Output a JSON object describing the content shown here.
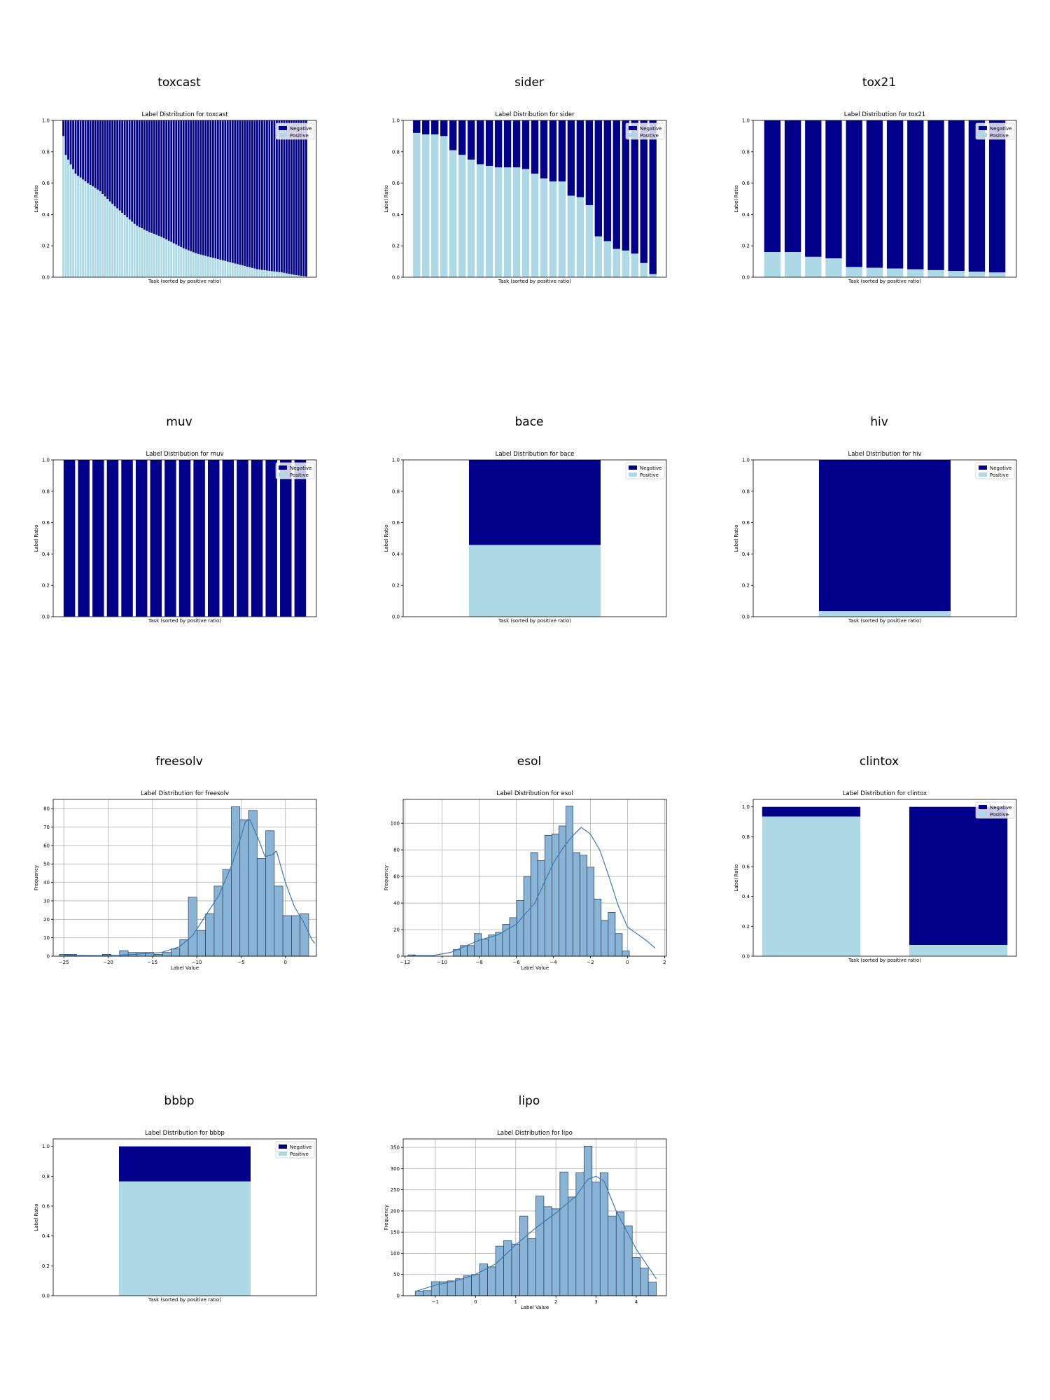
{
  "colors": {
    "negative": "#00008b",
    "positive": "#add8e6",
    "hist_fill": "#8ab4d6",
    "hist_edge": "#1f3a56",
    "kde": "#3a78b0"
  },
  "chart_data": [
    {
      "id": "toxcast",
      "type": "bar",
      "stacked": true,
      "panel_title": "toxcast",
      "title": "Label Distribution for toxcast",
      "xlabel": "Task (sorted by positive ratio)",
      "ylabel": "Label Ratio",
      "ylim": [
        0,
        1.0
      ],
      "yticks": [
        0.0,
        0.2,
        0.4,
        0.6,
        0.8,
        1.0
      ],
      "ytick_labels": [
        "0.0",
        "0.2",
        "0.4",
        "0.6",
        "0.8",
        "1.0"
      ],
      "legend": [
        "Negative",
        "Positive"
      ],
      "legend_position": "top-right",
      "positive_ratio_profile": [
        [
          0,
          0.9
        ],
        [
          0.01,
          0.78
        ],
        [
          0.05,
          0.66
        ],
        [
          0.1,
          0.6
        ],
        [
          0.15,
          0.55
        ],
        [
          0.2,
          0.47
        ],
        [
          0.25,
          0.4
        ],
        [
          0.3,
          0.33
        ],
        [
          0.35,
          0.29
        ],
        [
          0.4,
          0.26
        ],
        [
          0.45,
          0.22
        ],
        [
          0.5,
          0.18
        ],
        [
          0.55,
          0.15
        ],
        [
          0.6,
          0.13
        ],
        [
          0.65,
          0.11
        ],
        [
          0.7,
          0.09
        ],
        [
          0.75,
          0.07
        ],
        [
          0.8,
          0.05
        ],
        [
          0.85,
          0.04
        ],
        [
          0.9,
          0.03
        ],
        [
          0.95,
          0.015
        ],
        [
          1.0,
          0.005
        ]
      ],
      "bar_count": 100
    },
    {
      "id": "sider",
      "type": "bar",
      "stacked": true,
      "panel_title": "sider",
      "title": "Label Distribution for sider",
      "xlabel": "Task (sorted by positive ratio)",
      "ylabel": "Label Ratio",
      "ylim": [
        0,
        1.0
      ],
      "yticks": [
        0.0,
        0.2,
        0.4,
        0.6,
        0.8,
        1.0
      ],
      "ytick_labels": [
        "0.0",
        "0.2",
        "0.4",
        "0.6",
        "0.8",
        "1.0"
      ],
      "legend": [
        "Negative",
        "Positive"
      ],
      "legend_position": "top-right",
      "positive": [
        0.92,
        0.91,
        0.91,
        0.9,
        0.81,
        0.78,
        0.75,
        0.72,
        0.71,
        0.7,
        0.7,
        0.7,
        0.69,
        0.66,
        0.63,
        0.61,
        0.61,
        0.52,
        0.51,
        0.46,
        0.26,
        0.23,
        0.18,
        0.17,
        0.15,
        0.09,
        0.02
      ]
    },
    {
      "id": "tox21",
      "type": "bar",
      "stacked": true,
      "panel_title": "tox21",
      "title": "Label Distribution for tox21",
      "xlabel": "Task (sorted by positive ratio)",
      "ylabel": "Label Ratio",
      "ylim": [
        0,
        1.0
      ],
      "yticks": [
        0.0,
        0.2,
        0.4,
        0.6,
        0.8,
        1.0
      ],
      "ytick_labels": [
        "0.0",
        "0.2",
        "0.4",
        "0.6",
        "0.8",
        "1.0"
      ],
      "legend": [
        "Negative",
        "Positive"
      ],
      "legend_position": "top-right",
      "positive": [
        0.16,
        0.16,
        0.13,
        0.12,
        0.065,
        0.06,
        0.055,
        0.05,
        0.045,
        0.04,
        0.035,
        0.03
      ]
    },
    {
      "id": "muv",
      "type": "bar",
      "stacked": true,
      "panel_title": "muv",
      "title": "Label Distribution for muv",
      "xlabel": "Task (sorted by positive ratio)",
      "ylabel": "Label Ratio",
      "ylim": [
        0,
        1.0
      ],
      "yticks": [
        0.0,
        0.2,
        0.4,
        0.6,
        0.8,
        1.0
      ],
      "ytick_labels": [
        "0.0",
        "0.2",
        "0.4",
        "0.6",
        "0.8",
        "1.0"
      ],
      "legend": [
        "Negative",
        "Positive"
      ],
      "legend_position": "top-right",
      "positive": [
        0.002,
        0.002,
        0.002,
        0.002,
        0.002,
        0.002,
        0.002,
        0.002,
        0.002,
        0.002,
        0.002,
        0.002,
        0.002,
        0.002,
        0.002,
        0.002,
        0.002
      ]
    },
    {
      "id": "bace",
      "type": "bar",
      "stacked": true,
      "panel_title": "bace",
      "title": "Label Distribution for bace",
      "xlabel": "Task (sorted by positive ratio)",
      "ylabel": "Label Ratio",
      "ylim": [
        0,
        1.0
      ],
      "yticks": [
        0.0,
        0.2,
        0.4,
        0.6,
        0.8,
        1.0
      ],
      "ytick_labels": [
        "0.0",
        "0.2",
        "0.4",
        "0.6",
        "0.8",
        "1.0"
      ],
      "legend": [
        "Negative",
        "Positive"
      ],
      "legend_position": "top-right",
      "positive": [
        0.457
      ]
    },
    {
      "id": "hiv",
      "type": "bar",
      "stacked": true,
      "panel_title": "hiv",
      "title": "Label Distribution for hiv",
      "xlabel": "Task (sorted by positive ratio)",
      "ylabel": "Label Ratio",
      "ylim": [
        0,
        1.0
      ],
      "yticks": [
        0.0,
        0.2,
        0.4,
        0.6,
        0.8,
        1.0
      ],
      "ytick_labels": [
        "0.0",
        "0.2",
        "0.4",
        "0.6",
        "0.8",
        "1.0"
      ],
      "legend": [
        "Negative",
        "Positive"
      ],
      "legend_position": "top-right",
      "positive": [
        0.035
      ]
    },
    {
      "id": "freesolv",
      "type": "histogram",
      "kde": [
        [
          -25,
          0.5
        ],
        [
          -20,
          0.3
        ],
        [
          -17,
          1
        ],
        [
          -14,
          2
        ],
        [
          -12,
          5
        ],
        [
          -10.5,
          11
        ],
        [
          -9,
          22
        ],
        [
          -7.5,
          33
        ],
        [
          -6,
          50
        ],
        [
          -5,
          65
        ],
        [
          -4.5,
          73
        ],
        [
          -4,
          74
        ],
        [
          -3,
          63
        ],
        [
          -2.3,
          54
        ],
        [
          -1.5,
          55
        ],
        [
          -1,
          57
        ],
        [
          0,
          40
        ],
        [
          1,
          27
        ],
        [
          2,
          19
        ],
        [
          3,
          9
        ],
        [
          3.3,
          7
        ]
      ],
      "panel_title": "freesolv",
      "title": "Label Distribution for freesolv",
      "xlabel": "Label Value",
      "ylabel": "Frequency",
      "xlim": [
        -26.2,
        3.5
      ],
      "ylim": [
        0,
        85
      ],
      "xticks": [
        -25,
        -20,
        -15,
        -10,
        -5,
        0
      ],
      "xtick_labels": [
        "−25",
        "−20",
        "−15",
        "−10",
        "−5",
        "0"
      ],
      "yticks": [
        0,
        10,
        20,
        30,
        40,
        50,
        60,
        70,
        80
      ],
      "ytick_labels": [
        "0",
        "10",
        "20",
        "30",
        "40",
        "50",
        "60",
        "70",
        "80"
      ],
      "bin_start": -25.5,
      "bin_width": 0.97,
      "counts": [
        1,
        1,
        0,
        0,
        0,
        1,
        0,
        3,
        2,
        2,
        2,
        1,
        2,
        4,
        9,
        32,
        14,
        23,
        38,
        47,
        81,
        74,
        79,
        53,
        68,
        38,
        22,
        22,
        23
      ]
    },
    {
      "id": "esol",
      "type": "histogram",
      "kde": [
        [
          -11.6,
          0.5
        ],
        [
          -10.5,
          0.5
        ],
        [
          -9.5,
          3
        ],
        [
          -9,
          6
        ],
        [
          -8,
          12
        ],
        [
          -7,
          16
        ],
        [
          -6,
          24
        ],
        [
          -5,
          40
        ],
        [
          -4.5,
          55
        ],
        [
          -4,
          70
        ],
        [
          -3.5,
          81
        ],
        [
          -3,
          90
        ],
        [
          -2.5,
          97
        ],
        [
          -2,
          92
        ],
        [
          -1.5,
          80
        ],
        [
          -1,
          60
        ],
        [
          -0.5,
          38
        ],
        [
          0,
          22
        ],
        [
          0.5,
          17
        ],
        [
          1,
          12
        ],
        [
          1.5,
          6
        ]
      ],
      "panel_title": "esol",
      "title": "Label Distribution for esol",
      "xlabel": "Label Value",
      "ylabel": "Frequency",
      "xlim": [
        -12.1,
        2.1
      ],
      "ylim": [
        0,
        118
      ],
      "xticks": [
        -12,
        -10,
        -8,
        -6,
        -4,
        -2,
        0,
        2
      ],
      "xtick_labels": [
        "−12",
        "−10",
        "−8",
        "−6",
        "−4",
        "−2",
        "0",
        "2"
      ],
      "yticks": [
        0,
        20,
        40,
        60,
        80,
        100
      ],
      "ytick_labels": [
        "0",
        "20",
        "40",
        "60",
        "80",
        "100"
      ],
      "bin_start": -9.4,
      "bin_width": 0.38,
      "counts": [
        5,
        8,
        8,
        17,
        13,
        16,
        18,
        24,
        29,
        42,
        60,
        78,
        72,
        91,
        92,
        98,
        113,
        78,
        76,
        67,
        43,
        27,
        33,
        17,
        4
      ],
      "single": [
        [
          -11.65,
          1
        ]
      ]
    },
    {
      "id": "clintox",
      "type": "bar",
      "stacked": true,
      "panel_title": "clintox",
      "title": "Label Distribution for clintox",
      "xlabel": "Task (sorted by positive ratio)",
      "ylabel": "Label Ratio",
      "ylim": [
        0,
        1.05
      ],
      "yticks": [
        0.0,
        0.2,
        0.4,
        0.6,
        0.8,
        1.0
      ],
      "ytick_labels": [
        "0.0",
        "0.2",
        "0.4",
        "0.6",
        "0.8",
        "1.0"
      ],
      "legend": [
        "Negative",
        "Positive"
      ],
      "legend_position": "top-right",
      "positive": [
        0.935,
        0.075
      ]
    },
    {
      "id": "bbbp",
      "type": "bar",
      "stacked": true,
      "panel_title": "bbbp",
      "title": "Label Distribution for bbbp",
      "xlabel": "Task (sorted by positive ratio)",
      "ylabel": "Label Ratio",
      "ylim": [
        0,
        1.05
      ],
      "yticks": [
        0.0,
        0.2,
        0.4,
        0.6,
        0.8,
        1.0
      ],
      "ytick_labels": [
        "0.0",
        "0.2",
        "0.4",
        "0.6",
        "0.8",
        "1.0"
      ],
      "legend": [
        "Negative",
        "Positive"
      ],
      "legend_position": "top-right",
      "positive": [
        0.765
      ]
    },
    {
      "id": "lipo",
      "type": "histogram",
      "kde": [
        [
          -1.5,
          10
        ],
        [
          -1,
          25
        ],
        [
          -0.5,
          35
        ],
        [
          0,
          50
        ],
        [
          0.5,
          75
        ],
        [
          1,
          120
        ],
        [
          1.5,
          160
        ],
        [
          2,
          195
        ],
        [
          2.5,
          235
        ],
        [
          2.8,
          275
        ],
        [
          3,
          282
        ],
        [
          3.2,
          270
        ],
        [
          3.5,
          200
        ],
        [
          4,
          110
        ],
        [
          4.5,
          40
        ]
      ],
      "panel_title": "lipo",
      "title": "Label Distribution for lipo",
      "xlabel": "Label Value",
      "ylabel": "Frequency",
      "xlim": [
        -1.8,
        4.75
      ],
      "ylim": [
        0,
        370
      ],
      "xticks": [
        -1,
        0,
        1,
        2,
        3,
        4
      ],
      "xtick_labels": [
        "−1",
        "0",
        "1",
        "2",
        "3",
        "4"
      ],
      "yticks": [
        0,
        50,
        100,
        150,
        200,
        250,
        300,
        350
      ],
      "ytick_labels": [
        "0",
        "50",
        "100",
        "150",
        "200",
        "250",
        "300",
        "350"
      ],
      "bin_start": -1.5,
      "bin_width": 0.2,
      "counts": [
        11,
        12,
        33,
        33,
        35,
        40,
        47,
        50,
        75,
        68,
        117,
        130,
        122,
        188,
        135,
        235,
        210,
        205,
        292,
        233,
        290,
        353,
        268,
        290,
        188,
        198,
        165,
        90,
        65,
        32
      ]
    }
  ]
}
